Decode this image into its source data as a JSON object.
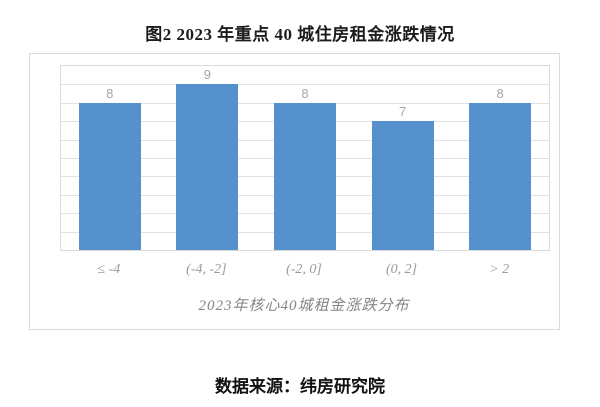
{
  "figure": {
    "title": "图2 2023 年重点 40 城住房租金涨跌情况",
    "source": "数据来源：纬房研究院"
  },
  "chart_data": {
    "type": "bar",
    "title": "图2 2023 年重点 40 城住房租金涨跌情况",
    "categories": [
      "≤ -4",
      "(-4, -2]",
      "(-2, 0]",
      "(0, 2]",
      "> 2"
    ],
    "values": [
      8,
      9,
      8,
      7,
      8
    ],
    "data_labels": [
      "8",
      "9",
      "8",
      "7",
      "8"
    ],
    "xlabel": "2023年核心40城租金涨跌分布",
    "ylabel": "",
    "ylim": [
      0,
      10
    ],
    "grid_step": 1,
    "grid": "horizontal-only",
    "legend": "none",
    "y_axis_tick_labels": "none",
    "bar_color": "#5591cd",
    "data_label_color": "#a6a6a6",
    "gridline_color": "#e2e2e2",
    "source": "数据来源：纬房研究院"
  }
}
